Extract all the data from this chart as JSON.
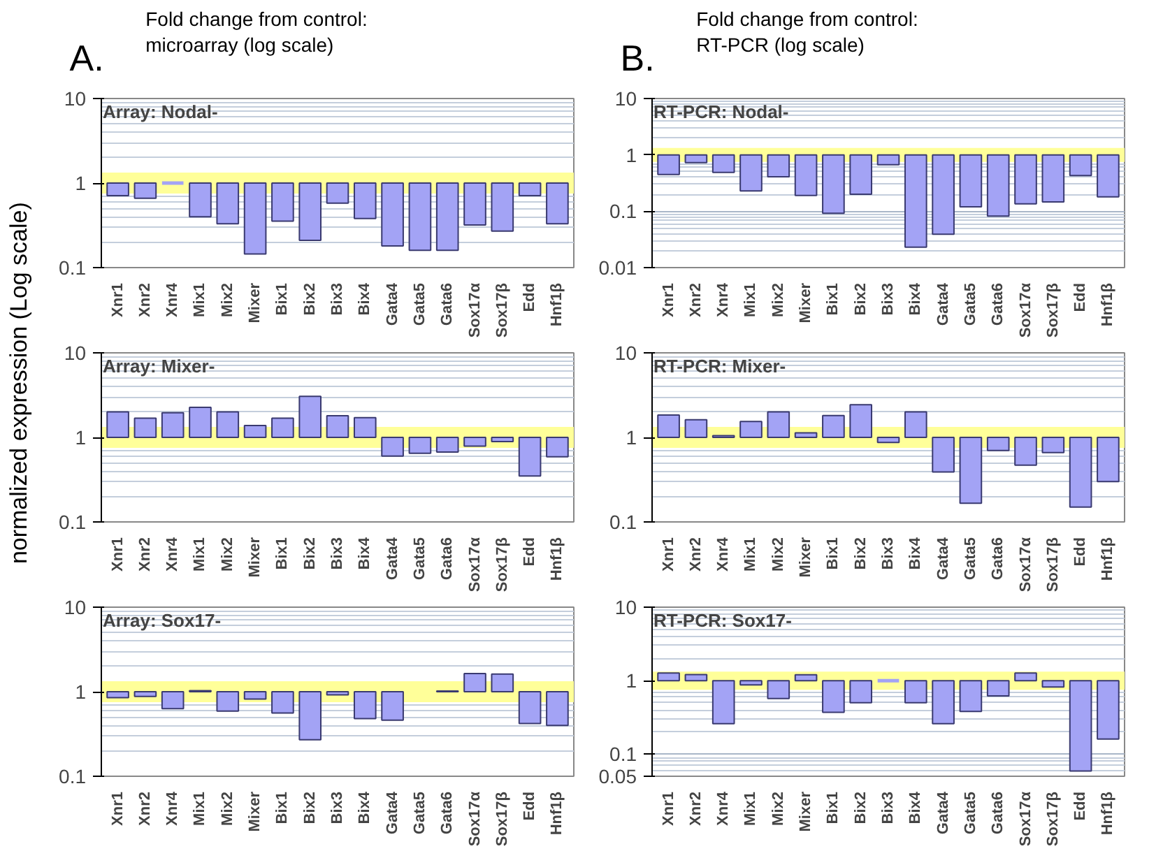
{
  "chart_data": [
    {
      "type": "bar",
      "title": "Array: Nodal-",
      "subtitle": "Fold change from control:\n microarray (log scale)",
      "annotations": [
        "A."
      ],
      "log": true,
      "grid": "y",
      "categories": [
        "Xnr1",
        "Xnr2",
        "Xnr4",
        "Mix1",
        "Mix2",
        "Mixer",
        "Bix1",
        "Bix2",
        "Bix3",
        "Bix4",
        "Gata4",
        "Gata5",
        "Gata6",
        "Sox17α",
        "Sox17β",
        "Edd",
        "Hnf1β"
      ],
      "color": "#a3a3f5",
      "base": [
        1,
        1,
        1,
        1,
        1,
        1,
        1,
        1,
        1,
        1,
        1,
        1,
        1,
        1,
        1,
        1,
        1
      ],
      "values": [
        -0.29,
        -0.34,
        0,
        -0.6,
        -0.67,
        -0.855,
        -0.645,
        -0.79,
        -0.42,
        -0.62,
        -0.82,
        -0.84,
        -0.84,
        -0.68,
        -0.73,
        -0.29,
        -0.67
      ],
      "ylim": [
        0.1,
        10
      ],
      "yticks": [
        0.1,
        1,
        10
      ],
      "bands": [
        {
          "axis": "y",
          "from": 0.75,
          "to": 1.33,
          "color": "#ffff99"
        }
      ]
    },
    {
      "type": "bar",
      "title": "RT-PCR: Nodal-",
      "subtitle": "Fold change from control:\nRT-PCR (log scale)",
      "annotations": [
        "B."
      ],
      "log": true,
      "grid": "y",
      "categories": [
        "Xnr1",
        "Xnr2",
        "Xnr4",
        "Mix1",
        "Mix2",
        "Mixer",
        "Bix1",
        "Bix2",
        "Bix3",
        "Bix4",
        "Gata4",
        "Gata5",
        "Gata6",
        "Sox17α",
        "Sox17β",
        "Edd",
        "Hnf1β"
      ],
      "color": "#a3a3f5",
      "base": [
        1,
        1,
        1,
        1,
        1,
        1,
        1,
        1,
        1,
        1,
        1,
        1,
        1,
        1,
        1,
        1,
        1
      ],
      "values": [
        -0.55,
        -0.27,
        -0.51,
        -0.77,
        -0.59,
        -0.81,
        -0.908,
        -0.8,
        -0.33,
        -0.977,
        -0.961,
        -0.88,
        -0.918,
        -0.865,
        -0.854,
        -0.57,
        -0.82
      ],
      "ylim": [
        0.01,
        10
      ],
      "yticks": [
        0.01,
        0.1,
        1,
        10
      ],
      "bands": [
        {
          "axis": "y",
          "from": 0.75,
          "to": 1.33,
          "color": "#ffff99"
        }
      ]
    },
    {
      "type": "bar",
      "title": "Array: Mixer-",
      "ylabel": "normalized expression (Log scale)",
      "log": true,
      "grid": "y",
      "categories": [
        "Xnr1",
        "Xnr2",
        "Xnr4",
        "Mix1",
        "Mix2",
        "Mixer",
        "Bix1",
        "Bix2",
        "Bix3",
        "Bix4",
        "Gata4",
        "Gata5",
        "Gata6",
        "Sox17α",
        "Sox17β",
        "Edd",
        "Hnf1β"
      ],
      "color": "#a3a3f5",
      "base": [
        1,
        1,
        1,
        1,
        1,
        1,
        1,
        1,
        1,
        1,
        1,
        1,
        1,
        1,
        1,
        1,
        1
      ],
      "values": [
        1.0,
        0.69,
        0.96,
        1.27,
        1.0,
        0.38,
        0.69,
        2.06,
        0.8,
        0.71,
        -0.4,
        -0.35,
        -0.33,
        -0.21,
        -0.11,
        -0.65,
        -0.41
      ],
      "ylim": [
        0.1,
        10
      ],
      "yticks": [
        0.1,
        1,
        10
      ],
      "bands": [
        {
          "axis": "y",
          "from": 0.75,
          "to": 1.33,
          "color": "#ffff99"
        }
      ]
    },
    {
      "type": "bar",
      "title": "RT-PCR: Mixer-",
      "log": true,
      "grid": "y",
      "categories": [
        "Xnr1",
        "Xnr2",
        "Xnr4",
        "Mix1",
        "Mix2",
        "Mixer",
        "Bix1",
        "Bix2",
        "Bix3",
        "Bix4",
        "Gata4",
        "Gata5",
        "Gata6",
        "Sox17α",
        "Sox17β",
        "Edd",
        "Hnf1β"
      ],
      "color": "#a3a3f5",
      "base": [
        1,
        1,
        1,
        1,
        1,
        1,
        1,
        1,
        1,
        1,
        1,
        1,
        1,
        1,
        1,
        1,
        1
      ],
      "values": [
        0.84,
        0.62,
        0.05,
        0.54,
        1.0,
        0.13,
        0.81,
        1.43,
        -0.13,
        1.0,
        -0.61,
        -0.834,
        -0.3,
        -0.53,
        -0.34,
        -0.85,
        -0.7
      ],
      "ylim": [
        0.1,
        10
      ],
      "yticks": [
        0.1,
        1,
        10
      ],
      "bands": [
        {
          "axis": "y",
          "from": 0.75,
          "to": 1.33,
          "color": "#ffff99"
        }
      ]
    },
    {
      "type": "bar",
      "title": "Array: Sox17-",
      "log": true,
      "grid": "y",
      "categories": [
        "Xnr1",
        "Xnr2",
        "Xnr4",
        "Mix1",
        "Mix2",
        "Mixer",
        "Bix1",
        "Bix2",
        "Bix3",
        "Bix4",
        "Gata4",
        "Gata5",
        "Gata6",
        "Sox17α",
        "Sox17β",
        "Edd",
        "Hnf1β"
      ],
      "color": "#a3a3f5",
      "base": [
        1,
        1,
        1,
        1,
        1,
        1,
        1,
        1,
        1,
        1,
        1,
        null,
        1,
        1,
        1,
        1,
        1
      ],
      "values": [
        -0.15,
        -0.12,
        -0.37,
        0.03,
        -0.41,
        -0.18,
        -0.44,
        -0.73,
        -0.08,
        -0.52,
        -0.54,
        null,
        0.02,
        0.64,
        0.62,
        -0.58,
        -0.6
      ],
      "ylim": [
        0.1,
        10
      ],
      "yticks": [
        0.1,
        1,
        10
      ],
      "bands": [
        {
          "axis": "y",
          "from": 0.75,
          "to": 1.33,
          "color": "#ffff99"
        }
      ]
    },
    {
      "type": "bar",
      "title": "RT-PCR: Sox17-",
      "log": true,
      "grid": "y",
      "categories": [
        "Xnr1",
        "Xnr2",
        "Xnr4",
        "Mix1",
        "Mix2",
        "Mixer",
        "Bix1",
        "Bix2",
        "Bix3",
        "Bix4",
        "Gata4",
        "Gata5",
        "Gata6",
        "Sox17α",
        "Sox17β",
        "Edd",
        "Hnf1β"
      ],
      "color": "#a3a3f5",
      "base": [
        1,
        1,
        1,
        1,
        1,
        1,
        1,
        1,
        1,
        1,
        1,
        1,
        1,
        1,
        1,
        1,
        1
      ],
      "values": [
        0.27,
        0.21,
        -0.74,
        -0.125,
        -0.43,
        0.2,
        -0.63,
        -0.5,
        0,
        -0.5,
        -0.74,
        -0.62,
        -0.38,
        0.27,
        -0.18,
        -0.941,
        -0.84
      ],
      "ylim": [
        0.05,
        10
      ],
      "yticks": [
        0.05,
        0.1,
        1,
        10
      ],
      "bands": [
        {
          "axis": "y",
          "from": 0.75,
          "to": 1.33,
          "color": "#ffff99"
        }
      ]
    }
  ]
}
